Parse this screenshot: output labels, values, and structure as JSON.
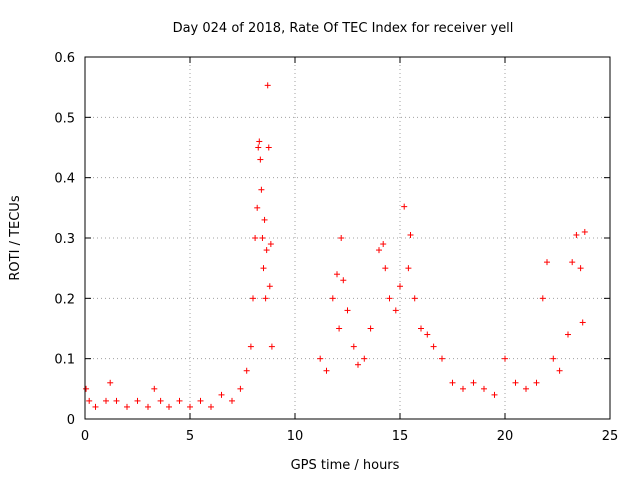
{
  "chart_data": {
    "type": "scatter",
    "title": "Day 024 of 2018, Rate Of TEC Index for receiver yell",
    "xlabel": "GPS time / hours",
    "ylabel": "ROTI / TECUs",
    "xlim": [
      0,
      25
    ],
    "ylim": [
      0,
      0.6
    ],
    "xticks": [
      0,
      5,
      10,
      15,
      20,
      25
    ],
    "yticks": [
      0,
      0.1,
      0.2,
      0.3,
      0.4,
      0.5,
      0.6
    ],
    "xtick_labels": [
      "0",
      "5",
      "10",
      "15",
      "20",
      "25"
    ],
    "ytick_labels": [
      "0",
      "0.1",
      "0.2",
      "0.3",
      "0.4",
      "0.5",
      "0.6"
    ],
    "grid": true,
    "marker": "+",
    "marker_color": "#ff0000",
    "series": [
      {
        "name": "ROTI",
        "x": [
          0.05,
          0.2,
          0.5,
          1.0,
          1.2,
          1.5,
          2.0,
          2.5,
          3.0,
          3.3,
          3.6,
          4.0,
          4.5,
          5.0,
          5.5,
          6.0,
          6.5,
          7.0,
          7.4,
          7.7,
          7.9,
          8.0,
          8.1,
          8.2,
          8.25,
          8.3,
          8.35,
          8.4,
          8.45,
          8.5,
          8.55,
          8.6,
          8.65,
          8.7,
          8.75,
          8.8,
          8.85,
          8.9,
          11.2,
          11.5,
          11.8,
          12.0,
          12.1,
          12.2,
          12.3,
          12.5,
          12.8,
          13.0,
          13.3,
          13.6,
          14.0,
          14.2,
          14.3,
          14.5,
          14.8,
          15.0,
          15.2,
          15.4,
          15.5,
          15.7,
          16.0,
          16.3,
          16.6,
          17.0,
          17.5,
          18.0,
          18.5,
          19.0,
          19.5,
          20.0,
          20.5,
          21.0,
          21.5,
          21.8,
          22.0,
          22.3,
          22.6,
          23.0,
          23.2,
          23.4,
          23.6,
          23.7,
          23.8
        ],
        "y": [
          0.05,
          0.03,
          0.02,
          0.03,
          0.06,
          0.03,
          0.02,
          0.03,
          0.02,
          0.05,
          0.03,
          0.02,
          0.03,
          0.02,
          0.03,
          0.02,
          0.04,
          0.03,
          0.05,
          0.08,
          0.12,
          0.2,
          0.3,
          0.35,
          0.45,
          0.46,
          0.43,
          0.38,
          0.3,
          0.25,
          0.33,
          0.2,
          0.28,
          0.553,
          0.45,
          0.22,
          0.29,
          0.12,
          0.1,
          0.08,
          0.2,
          0.24,
          0.15,
          0.3,
          0.23,
          0.18,
          0.12,
          0.09,
          0.1,
          0.15,
          0.28,
          0.29,
          0.25,
          0.2,
          0.18,
          0.22,
          0.352,
          0.25,
          0.305,
          0.2,
          0.15,
          0.14,
          0.12,
          0.1,
          0.06,
          0.05,
          0.06,
          0.05,
          0.04,
          0.1,
          0.06,
          0.05,
          0.06,
          0.2,
          0.26,
          0.1,
          0.08,
          0.14,
          0.26,
          0.305,
          0.25,
          0.16,
          0.31
        ]
      }
    ]
  }
}
